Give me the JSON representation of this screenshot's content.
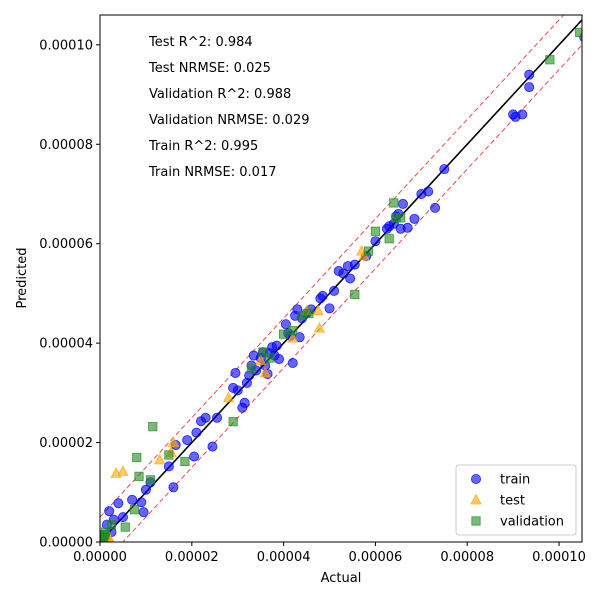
{
  "chart_data": {
    "type": "scatter",
    "title": "",
    "xlabel": "Actual",
    "ylabel": "Predicted",
    "xlim": [
      0,
      0.000105
    ],
    "ylim": [
      0,
      0.000106
    ],
    "x_ticks": [
      0,
      2e-05,
      4e-05,
      6e-05,
      8e-05,
      0.0001
    ],
    "x_tick_labels": [
      "0.00000",
      "0.00002",
      "0.00004",
      "0.00006",
      "0.00008",
      "0.00010"
    ],
    "y_ticks": [
      0,
      2e-05,
      4e-05,
      6e-05,
      8e-05,
      0.0001
    ],
    "y_tick_labels": [
      "0.00000",
      "0.00002",
      "0.00004",
      "0.00006",
      "0.00008",
      "0.00010"
    ],
    "annotations": [
      "Test R^2: 0.984",
      "Test NRMSE: 0.025",
      "Validation R^2: 0.988",
      "Validation NRMSE: 0.029",
      "Train R^2: 0.995",
      "Train NRMSE: 0.017"
    ],
    "reference_lines": {
      "identity": {
        "slope": 1,
        "offset": 0,
        "color": "#000000"
      },
      "bands": {
        "offset": 5e-06,
        "color": "#e84a4a"
      }
    },
    "legend_position": "lower-right",
    "series": [
      {
        "name": "train",
        "marker": "circle",
        "color": "#0000ff",
        "points": [
          [
            2e-07,
            5e-07
          ],
          [
            5e-07,
            1.2e-06
          ],
          [
            1e-06,
            8e-07
          ],
          [
            1.5e-06,
            3.5e-06
          ],
          [
            2e-06,
            6.2e-06
          ],
          [
            2.5e-06,
            2e-06
          ],
          [
            3e-06,
            4.5e-06
          ],
          [
            4e-06,
            7.8e-06
          ],
          [
            5e-06,
            5e-06
          ],
          [
            7e-06,
            8.5e-06
          ],
          [
            9e-06,
            8e-06
          ],
          [
            9.5e-06,
            6e-06
          ],
          [
            1e-05,
            1.05e-05
          ],
          [
            1.1e-05,
            1.2e-05
          ],
          [
            1.5e-05,
            1.52e-05
          ],
          [
            1.6e-05,
            1.1e-05
          ],
          [
            1.65e-05,
            1.95e-05
          ],
          [
            1.9e-05,
            2.05e-05
          ],
          [
            2.05e-05,
            1.72e-05
          ],
          [
            2.1e-05,
            2.2e-05
          ],
          [
            2.2e-05,
            2.43e-05
          ],
          [
            2.3e-05,
            2.5e-05
          ],
          [
            2.45e-05,
            1.92e-05
          ],
          [
            2.55e-05,
            2.5e-05
          ],
          [
            2.9e-05,
            3.1e-05
          ],
          [
            2.95e-05,
            3.4e-05
          ],
          [
            3e-05,
            3.05e-05
          ],
          [
            3.1e-05,
            2.7e-05
          ],
          [
            3.15e-05,
            2.8e-05
          ],
          [
            3.2e-05,
            3.2e-05
          ],
          [
            3.25e-05,
            3.35e-05
          ],
          [
            3.3e-05,
            3.55e-05
          ],
          [
            3.35e-05,
            3.75e-05
          ],
          [
            3.4e-05,
            3.45e-05
          ],
          [
            3.5e-05,
            3.7e-05
          ],
          [
            3.55e-05,
            3.82e-05
          ],
          [
            3.6e-05,
            3.55e-05
          ],
          [
            3.65e-05,
            3.38e-05
          ],
          [
            3.7e-05,
            3.8e-05
          ],
          [
            3.75e-05,
            3.92e-05
          ],
          [
            3.8e-05,
            3.75e-05
          ],
          [
            3.85e-05,
            3.95e-05
          ],
          [
            3.9e-05,
            3.68e-05
          ],
          [
            4.05e-05,
            4.38e-05
          ],
          [
            4.1e-05,
            4.2e-05
          ],
          [
            4.15e-05,
            4.15e-05
          ],
          [
            4.2e-05,
            3.6e-05
          ],
          [
            4.25e-05,
            4.55e-05
          ],
          [
            4.3e-05,
            4.68e-05
          ],
          [
            4.35e-05,
            4.12e-05
          ],
          [
            4.4e-05,
            4.5e-05
          ],
          [
            4.5e-05,
            4.6e-05
          ],
          [
            4.6e-05,
            4.68e-05
          ],
          [
            4.8e-05,
            4.9e-05
          ],
          [
            4.85e-05,
            4.95e-05
          ],
          [
            5e-05,
            4.7e-05
          ],
          [
            5.1e-05,
            5.05e-05
          ],
          [
            5.2e-05,
            5.45e-05
          ],
          [
            5.3e-05,
            5.4e-05
          ],
          [
            5.4e-05,
            5.55e-05
          ],
          [
            5.45e-05,
            5.3e-05
          ],
          [
            5.55e-05,
            5.58e-05
          ],
          [
            5.8e-05,
            5.75e-05
          ],
          [
            6e-05,
            6.05e-05
          ],
          [
            6.25e-05,
            6.3e-05
          ],
          [
            6.3e-05,
            6.35e-05
          ],
          [
            6.4e-05,
            6.4e-05
          ],
          [
            6.45e-05,
            6.55e-05
          ],
          [
            6.5e-05,
            6.6e-05
          ],
          [
            6.55e-05,
            6.3e-05
          ],
          [
            6.6e-05,
            6.8e-05
          ],
          [
            6.7e-05,
            6.32e-05
          ],
          [
            6.85e-05,
            6.5e-05
          ],
          [
            7e-05,
            7e-05
          ],
          [
            7.15e-05,
            7.05e-05
          ],
          [
            7.3e-05,
            6.72e-05
          ],
          [
            7.5e-05,
            7.5e-05
          ],
          [
            9e-05,
            8.6e-05
          ],
          [
            9.05e-05,
            8.55e-05
          ],
          [
            9.2e-05,
            8.6e-05
          ],
          [
            9.35e-05,
            9.15e-05
          ],
          [
            9.35e-05,
            9.4e-05
          ],
          [
            0.0001055,
            0.0001015
          ]
        ]
      },
      {
        "name": "test",
        "marker": "triangle",
        "color": "#ffa500",
        "points": [
          [
            5e-07,
            2e-07
          ],
          [
            1.2e-06,
            5e-07
          ],
          [
            1.5e-06,
            1.2e-06
          ],
          [
            2e-06,
            8e-07
          ],
          [
            2.2e-06,
            3e-07
          ],
          [
            3.5e-06,
            1.38e-05
          ],
          [
            5e-06,
            1.42e-05
          ],
          [
            1.3e-05,
            1.65e-05
          ],
          [
            1.55e-05,
            1.8e-05
          ],
          [
            1.6e-05,
            2e-05
          ],
          [
            2.8e-05,
            2.9e-05
          ],
          [
            3.5e-05,
            3.65e-05
          ],
          [
            3.6e-05,
            3.4e-05
          ],
          [
            4.2e-05,
            4.1e-05
          ],
          [
            4.5e-05,
            4.65e-05
          ],
          [
            4.75e-05,
            4.65e-05
          ],
          [
            4.78e-05,
            4.3e-05
          ],
          [
            5.7e-05,
            5.85e-05
          ],
          [
            5.75e-05,
            5.75e-05
          ]
        ]
      },
      {
        "name": "validation",
        "marker": "square",
        "color": "#228b22",
        "points": [
          [
            2e-07,
            2e-07
          ],
          [
            4e-07,
            8e-07
          ],
          [
            6e-07,
            1.2e-06
          ],
          [
            8e-07,
            5e-07
          ],
          [
            1e-06,
            1.5e-06
          ],
          [
            1.2e-06,
            2e-06
          ],
          [
            2.5e-06,
            3.5e-06
          ],
          [
            5.5e-06,
            3e-06
          ],
          [
            7.5e-06,
            6.5e-06
          ],
          [
            8e-06,
            1.7e-05
          ],
          [
            8.5e-06,
            1.32e-05
          ],
          [
            1.1e-05,
            1.25e-05
          ],
          [
            1.15e-05,
            2.32e-05
          ],
          [
            1.5e-05,
            1.75e-05
          ],
          [
            1.85e-05,
            1.62e-05
          ],
          [
            2.9e-05,
            2.42e-05
          ],
          [
            3.3e-05,
            3.48e-05
          ],
          [
            3.55e-05,
            3.82e-05
          ],
          [
            3.7e-05,
            3.7e-05
          ],
          [
            4e-05,
            4.18e-05
          ],
          [
            4.2e-05,
            4.25e-05
          ],
          [
            4.4e-05,
            4.55e-05
          ],
          [
            4.55e-05,
            4.6e-05
          ],
          [
            5.55e-05,
            4.98e-05
          ],
          [
            5.85e-05,
            5.85e-05
          ],
          [
            6e-05,
            6.25e-05
          ],
          [
            6.3e-05,
            6.1e-05
          ],
          [
            6.4e-05,
            6.82e-05
          ],
          [
            6.45e-05,
            6.52e-05
          ],
          [
            6.55e-05,
            6.52e-05
          ],
          [
            9.8e-05,
            9.7e-05
          ],
          [
            0.0001045,
            0.0001025
          ]
        ]
      }
    ]
  }
}
